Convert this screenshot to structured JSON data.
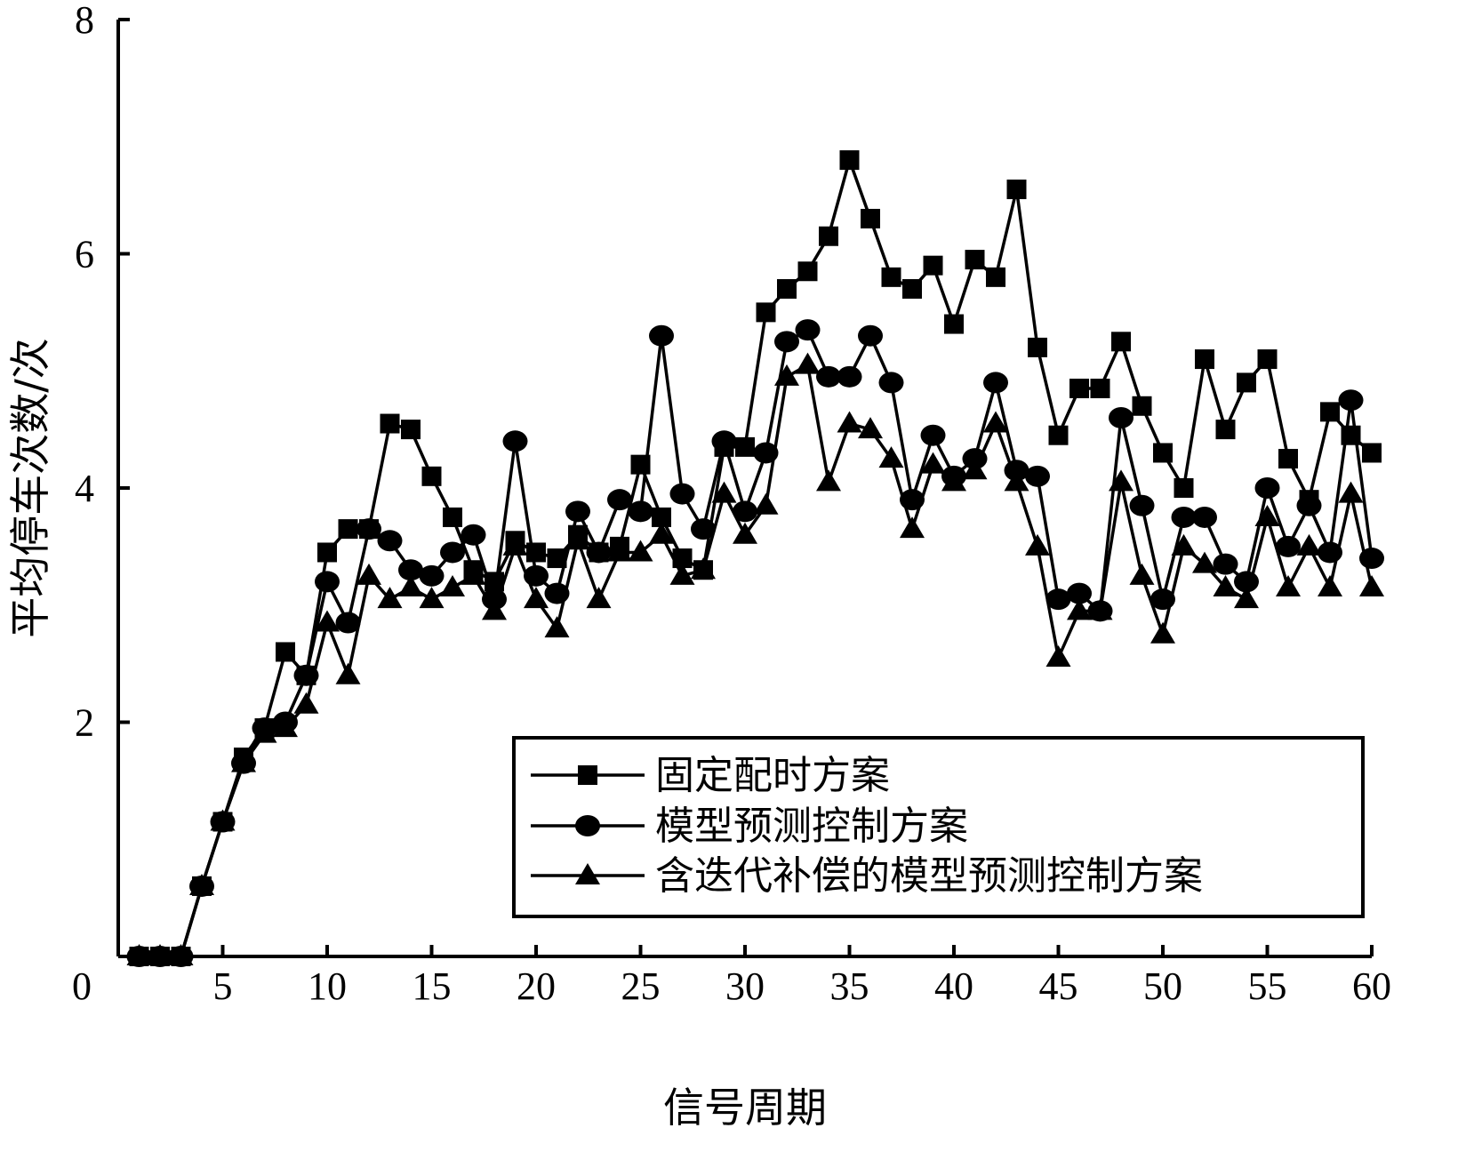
{
  "chart_data": {
    "type": "line",
    "xlabel": "信号周期",
    "ylabel": "平均停车次数/次",
    "xlim": [
      0,
      60
    ],
    "ylim": [
      0,
      8
    ],
    "xticks": [
      0,
      5,
      10,
      15,
      20,
      25,
      30,
      35,
      40,
      45,
      50,
      55,
      60
    ],
    "yticks": [
      2,
      4,
      6,
      8
    ],
    "grid": false,
    "legend_position": "bottom-right",
    "x": [
      1,
      2,
      3,
      4,
      5,
      6,
      7,
      8,
      9,
      10,
      11,
      12,
      13,
      14,
      15,
      16,
      17,
      18,
      19,
      20,
      21,
      22,
      23,
      24,
      25,
      26,
      27,
      28,
      29,
      30,
      31,
      32,
      33,
      34,
      35,
      36,
      37,
      38,
      39,
      40,
      41,
      42,
      43,
      44,
      45,
      46,
      47,
      48,
      49,
      50,
      51,
      52,
      53,
      54,
      55,
      56,
      57,
      58,
      59,
      60
    ],
    "series": [
      {
        "name": "固定配时方案",
        "marker": "square",
        "values": [
          0,
          0,
          0,
          0.6,
          1.15,
          1.7,
          1.95,
          2.6,
          2.4,
          3.45,
          3.65,
          3.65,
          4.55,
          4.5,
          4.1,
          3.75,
          3.3,
          3.2,
          3.55,
          3.45,
          3.4,
          3.6,
          3.45,
          3.5,
          4.2,
          3.75,
          3.4,
          3.3,
          4.35,
          4.35,
          5.5,
          5.7,
          5.85,
          6.15,
          6.8,
          6.3,
          5.8,
          5.7,
          5.9,
          5.4,
          5.95,
          5.8,
          6.55,
          5.2,
          4.45,
          4.85,
          4.85,
          5.25,
          4.7,
          4.3,
          4.0,
          5.1,
          4.5,
          4.9,
          5.1,
          4.25,
          3.9,
          4.65,
          4.45,
          4.3
        ]
      },
      {
        "name": "模型预测控制方案",
        "marker": "circle",
        "values": [
          0,
          0,
          0,
          0.6,
          1.15,
          1.65,
          1.95,
          2.0,
          2.4,
          3.2,
          2.85,
          3.65,
          3.55,
          3.3,
          3.25,
          3.45,
          3.6,
          3.05,
          4.4,
          3.25,
          3.1,
          3.8,
          3.45,
          3.9,
          3.8,
          5.3,
          3.95,
          3.65,
          4.4,
          3.8,
          4.3,
          5.25,
          5.35,
          4.95,
          4.95,
          5.3,
          4.9,
          3.9,
          4.45,
          4.1,
          4.25,
          4.9,
          4.15,
          4.1,
          3.05,
          3.1,
          2.95,
          4.6,
          3.85,
          3.05,
          3.75,
          3.75,
          3.35,
          3.2,
          4.0,
          3.5,
          3.85,
          3.45,
          4.75,
          3.4
        ]
      },
      {
        "name": "含迭代补偿的模型预测控制方案",
        "marker": "triangle",
        "values": [
          0,
          0,
          0,
          0.6,
          1.15,
          1.65,
          1.9,
          1.95,
          2.15,
          2.85,
          2.4,
          3.25,
          3.05,
          3.15,
          3.05,
          3.15,
          3.25,
          2.95,
          3.5,
          3.05,
          2.8,
          3.55,
          3.05,
          3.45,
          3.45,
          3.6,
          3.25,
          3.3,
          3.95,
          3.6,
          3.85,
          4.95,
          5.05,
          4.05,
          4.55,
          4.5,
          4.25,
          3.65,
          4.2,
          4.05,
          4.15,
          4.55,
          4.05,
          3.5,
          2.55,
          2.95,
          2.95,
          4.05,
          3.25,
          2.75,
          3.5,
          3.35,
          3.15,
          3.05,
          3.75,
          3.15,
          3.5,
          3.15,
          3.95,
          3.15
        ]
      }
    ]
  }
}
